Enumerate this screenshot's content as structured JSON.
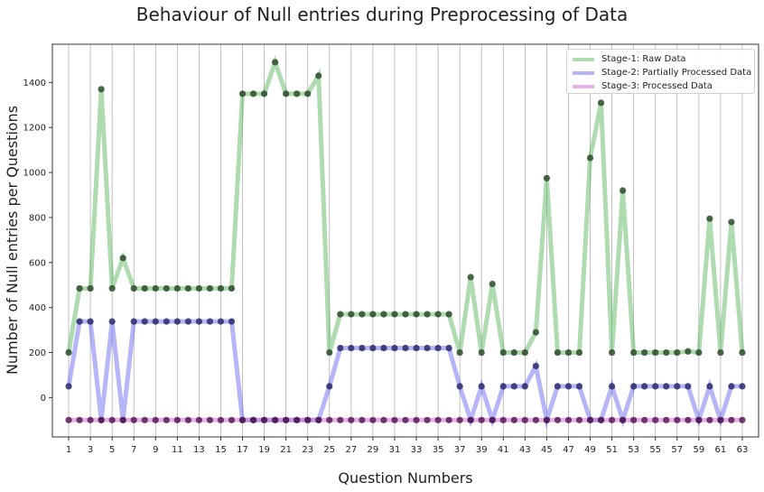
{
  "chart_data": {
    "type": "line",
    "title": "Behaviour of Null entries during Preprocessing of Data",
    "xlabel": "Question Numbers",
    "ylabel": "Number of Null entries per Questions",
    "x": [
      1,
      2,
      3,
      4,
      5,
      6,
      7,
      8,
      9,
      10,
      11,
      12,
      13,
      14,
      15,
      16,
      17,
      18,
      19,
      20,
      21,
      22,
      23,
      24,
      25,
      26,
      27,
      28,
      29,
      30,
      31,
      32,
      33,
      34,
      35,
      36,
      37,
      38,
      39,
      40,
      41,
      42,
      43,
      44,
      45,
      46,
      47,
      48,
      49,
      50,
      51,
      52,
      53,
      54,
      55,
      56,
      57,
      58,
      59,
      60,
      61,
      62,
      63
    ],
    "x_ticks": [
      1,
      3,
      5,
      7,
      9,
      11,
      13,
      15,
      17,
      19,
      21,
      23,
      25,
      27,
      29,
      31,
      33,
      35,
      37,
      39,
      41,
      43,
      45,
      47,
      49,
      51,
      53,
      55,
      57,
      59,
      61,
      63
    ],
    "y_ticks": [
      0,
      200,
      400,
      600,
      800,
      1000,
      1200,
      1400
    ],
    "xlim": [
      -0.5,
      64.5
    ],
    "ylim": [
      -175,
      1570
    ],
    "grid": "vertical",
    "legend_position": "top-right",
    "series": [
      {
        "name": "Stage-1: Raw Data",
        "color": "#4caf50",
        "values": [
          200,
          485,
          485,
          1370,
          485,
          620,
          485,
          485,
          485,
          485,
          485,
          485,
          485,
          485,
          485,
          485,
          1350,
          1350,
          1350,
          1490,
          1350,
          1350,
          1350,
          1430,
          200,
          370,
          370,
          370,
          370,
          370,
          370,
          370,
          370,
          370,
          370,
          370,
          200,
          535,
          200,
          505,
          200,
          200,
          200,
          290,
          975,
          200,
          200,
          200,
          1065,
          1310,
          200,
          920,
          200,
          200,
          200,
          200,
          200,
          205,
          200,
          795,
          200,
          780,
          200
        ]
      },
      {
        "name": "Stage-2: Partially Processed Data",
        "color": "#5a5af0",
        "values": [
          50,
          338,
          338,
          -100,
          338,
          -100,
          338,
          338,
          338,
          338,
          338,
          338,
          338,
          338,
          338,
          338,
          -100,
          -100,
          -100,
          -100,
          -100,
          -100,
          -100,
          -100,
          50,
          220,
          220,
          220,
          220,
          220,
          220,
          220,
          220,
          220,
          220,
          220,
          50,
          -100,
          50,
          -100,
          50,
          50,
          50,
          140,
          -100,
          50,
          50,
          50,
          -100,
          -100,
          50,
          -100,
          50,
          50,
          50,
          50,
          50,
          50,
          -100,
          50,
          -100,
          50,
          50
        ]
      },
      {
        "name": "Stage-3: Processed Data",
        "color": "#cc77cc",
        "values": [
          -100,
          -100,
          -100,
          -100,
          -100,
          -100,
          -100,
          -100,
          -100,
          -100,
          -100,
          -100,
          -100,
          -100,
          -100,
          -100,
          -100,
          -100,
          -100,
          -100,
          -100,
          -100,
          -100,
          -100,
          -100,
          -100,
          -100,
          -100,
          -100,
          -100,
          -100,
          -100,
          -100,
          -100,
          -100,
          -100,
          -100,
          -100,
          -100,
          -100,
          -100,
          -100,
          -100,
          -100,
          -100,
          -100,
          -100,
          -100,
          -100,
          -100,
          -100,
          -100,
          -100,
          -100,
          -100,
          -100,
          -100,
          -100,
          -100,
          -100,
          -100,
          -100,
          -100
        ]
      }
    ],
    "marker_colors": [
      "#2d4a2d",
      "#2a2a6e",
      "#5a1a5a"
    ]
  }
}
